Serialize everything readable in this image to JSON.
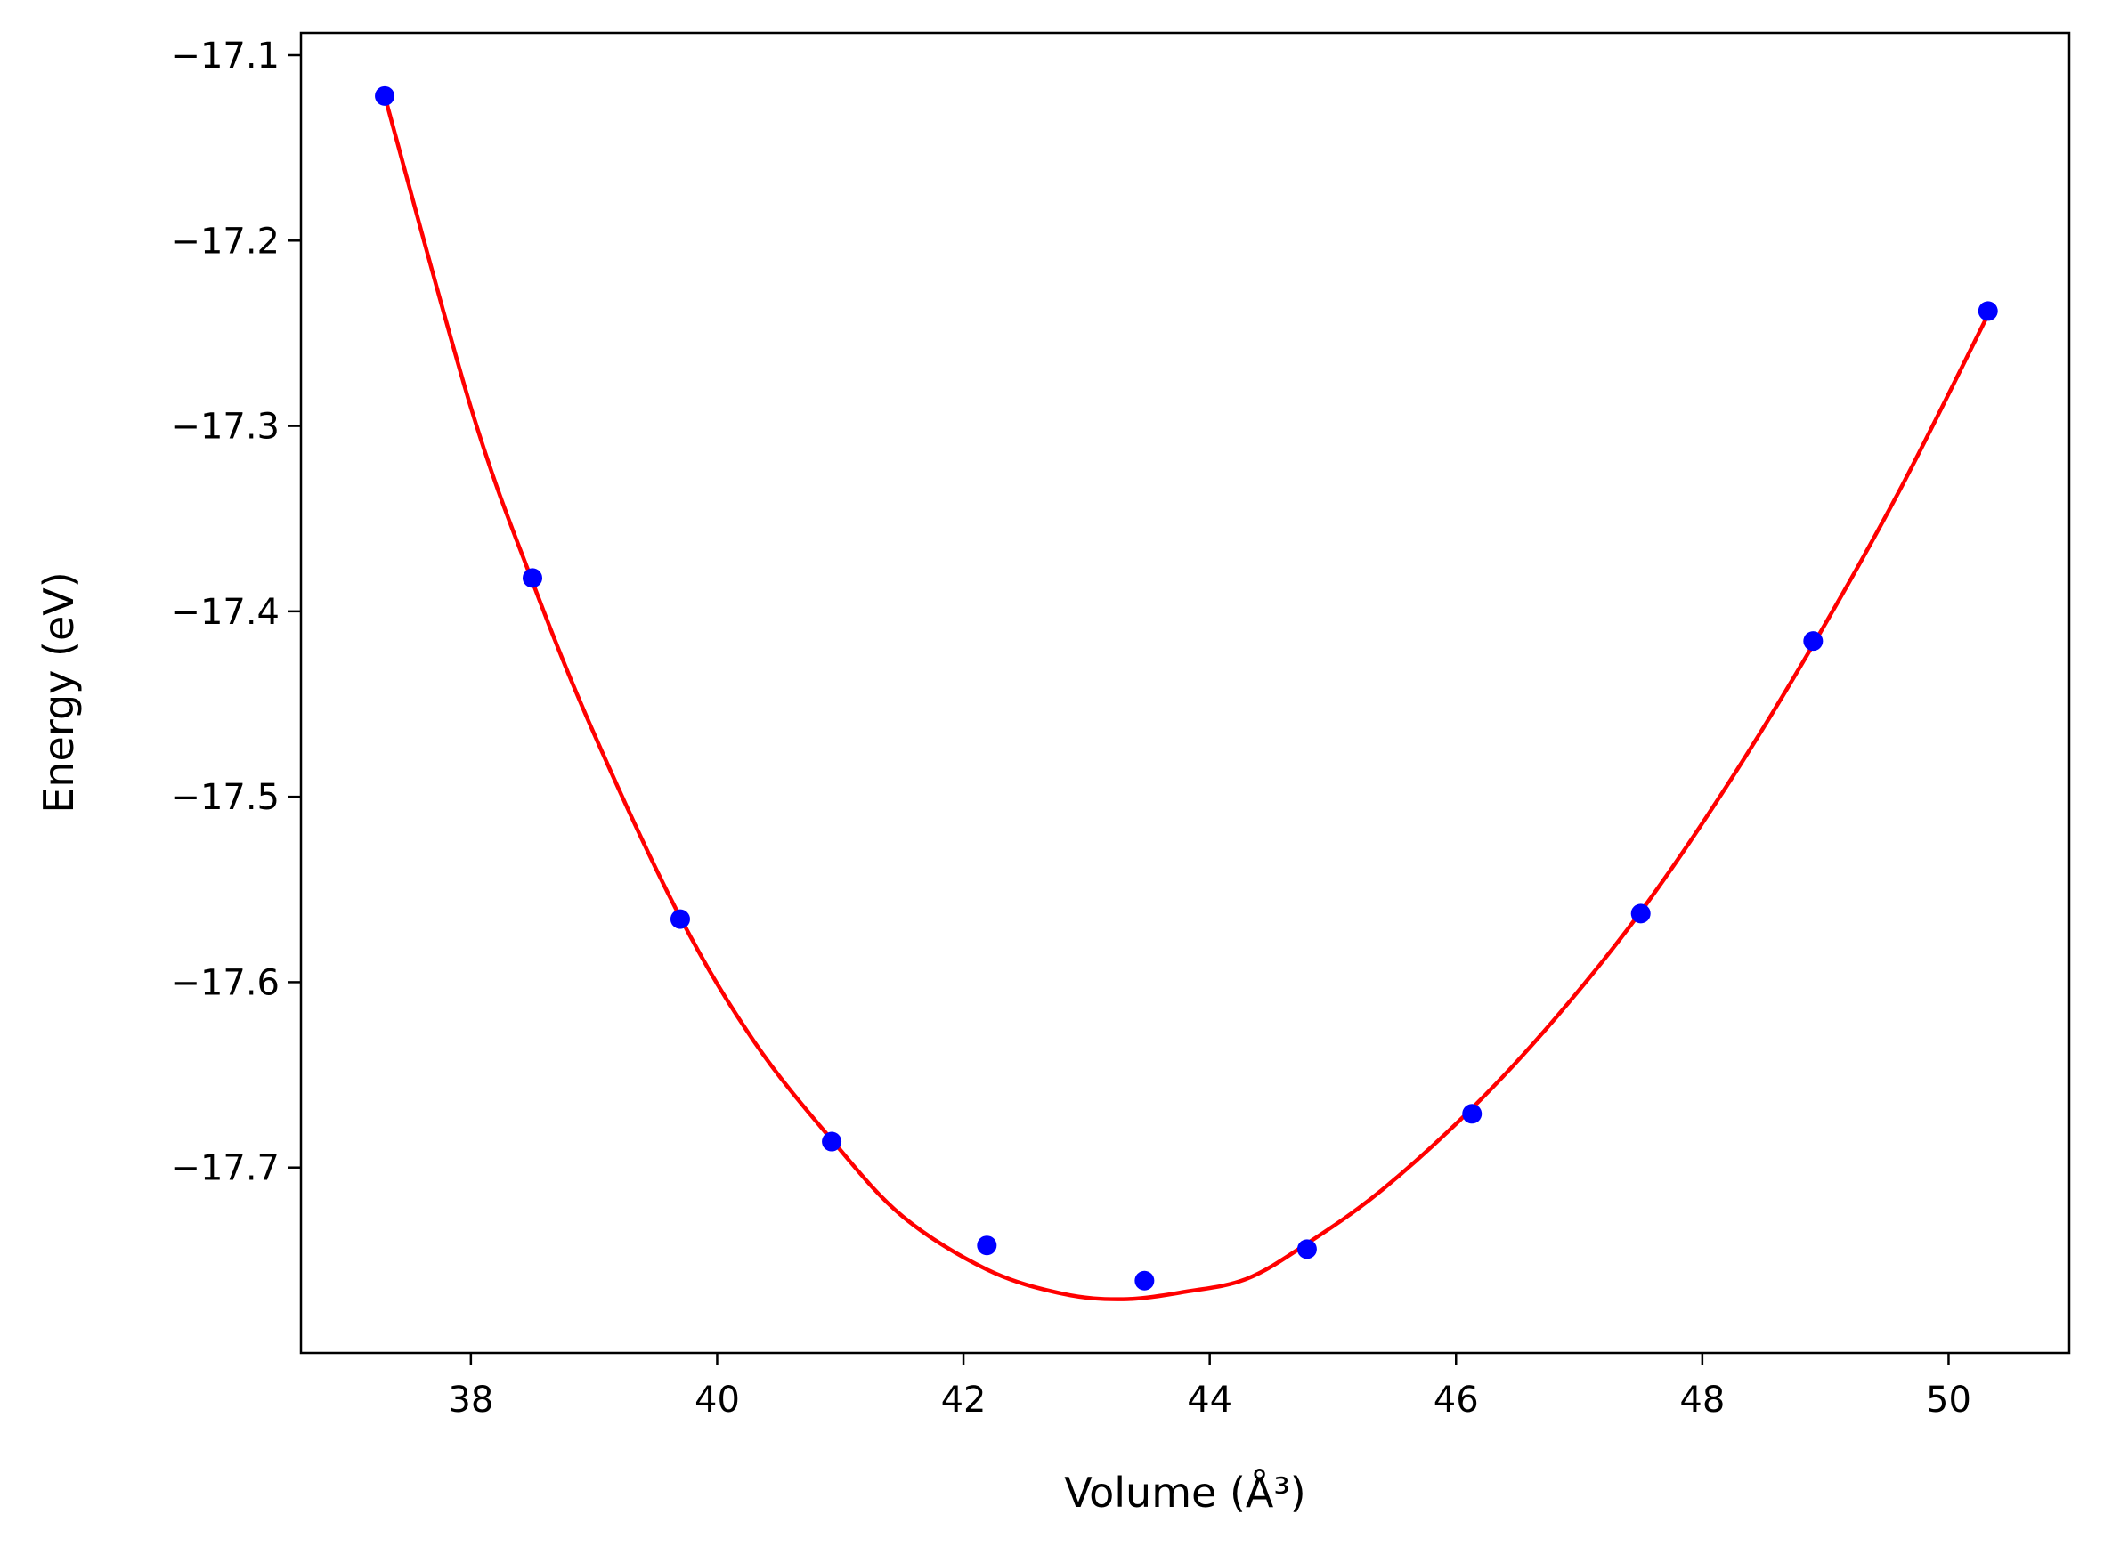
{
  "chart_data": {
    "type": "scatter",
    "title": "",
    "xlabel": "Volume (Å³)",
    "ylabel": "Energy (eV)",
    "xlim": [
      36.62,
      50.98
    ],
    "ylim": [
      -17.8,
      -17.088
    ],
    "x_ticks": [
      38,
      40,
      42,
      44,
      46,
      48,
      50
    ],
    "y_ticks": [
      -17.7,
      -17.6,
      -17.5,
      -17.4,
      -17.3,
      -17.2,
      -17.1
    ],
    "x_tick_labels": [
      "38",
      "40",
      "42",
      "44",
      "46",
      "48",
      "50"
    ],
    "y_tick_labels": [
      "−17.7",
      "−17.6",
      "−17.5",
      "−17.4",
      "−17.3",
      "−17.2",
      "−17.1"
    ],
    "grid": false,
    "series": [
      {
        "kind": "scatter",
        "color": "#0000ff",
        "x": [
          37.3,
          38.5,
          39.7,
          40.93,
          42.19,
          43.47,
          44.79,
          46.13,
          47.5,
          48.9,
          50.32
        ],
        "y": [
          -17.122,
          -17.382,
          -17.566,
          -17.686,
          -17.742,
          -17.761,
          -17.744,
          -17.671,
          -17.563,
          -17.416,
          -17.238
        ]
      },
      {
        "kind": "line",
        "color": "#ff0000",
        "x": [
          37.3,
          38.0,
          38.5,
          39.0,
          39.7,
          40.3,
          40.93,
          41.5,
          42.19,
          42.8,
          43.3,
          43.8,
          44.3,
          44.79,
          45.4,
          46.13,
          46.8,
          47.5,
          48.2,
          48.9,
          49.6,
          50.32
        ],
        "y": [
          -17.122,
          -17.29,
          -17.384,
          -17.466,
          -17.565,
          -17.632,
          -17.685,
          -17.726,
          -17.755,
          -17.768,
          -17.771,
          -17.767,
          -17.76,
          -17.741,
          -17.712,
          -17.668,
          -17.62,
          -17.562,
          -17.494,
          -17.418,
          -17.335,
          -17.24
        ]
      }
    ]
  }
}
